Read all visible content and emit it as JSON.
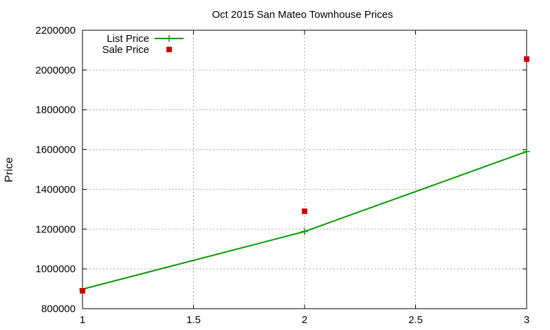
{
  "chart_data": {
    "type": "line",
    "title": "Oct 2015 San Mateo Townhouse Prices",
    "xlabel": "",
    "ylabel": "Price",
    "xlim": [
      1,
      3
    ],
    "ylim": [
      800000,
      2200000
    ],
    "x_ticks": [
      1,
      1.5,
      2,
      2.5,
      3
    ],
    "x_tick_labels": [
      "1",
      "1.5",
      "2",
      "2.5",
      "3"
    ],
    "y_ticks": [
      800000,
      1000000,
      1200000,
      1400000,
      1600000,
      1800000,
      2000000,
      2200000
    ],
    "y_tick_labels": [
      "800000",
      "1000000",
      "1200000",
      "1400000",
      "1600000",
      "1800000",
      "2000000",
      "2200000"
    ],
    "grid": true,
    "legend_position": "top-left",
    "series": [
      {
        "name": "List Price",
        "style": "line-with-plus-markers",
        "color": "#009900",
        "x": [
          1,
          2,
          3
        ],
        "y": [
          898000,
          1188000,
          1590000
        ]
      },
      {
        "name": "Sale Price",
        "style": "square-markers",
        "color": "#cc0000",
        "x": [
          1,
          2,
          3
        ],
        "y": [
          890000,
          1290000,
          2055000
        ]
      }
    ]
  }
}
